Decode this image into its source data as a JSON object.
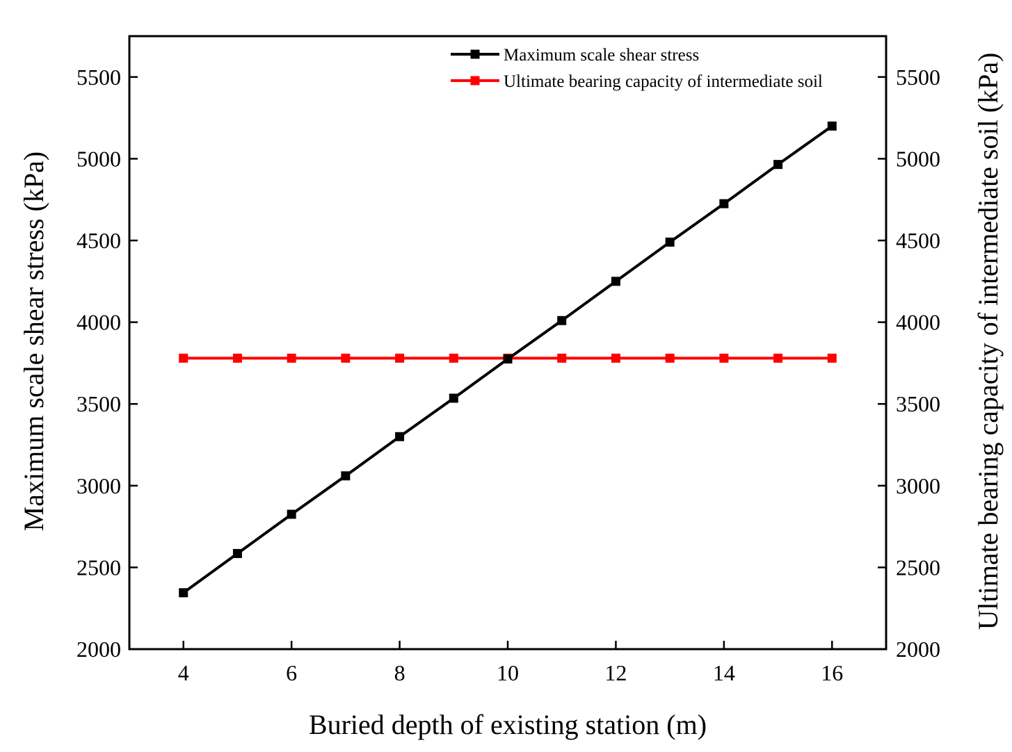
{
  "chart_data": {
    "type": "line",
    "title": "",
    "xlabel": "Buried depth of existing station (m)",
    "ylabel": "Maximum scale shear stress (kPa)",
    "y2label": "Ultimate bearing capacity of intermediate soil (kPa)",
    "xlim": [
      3,
      17
    ],
    "ylim": [
      2000,
      5750
    ],
    "y2lim": [
      2000,
      5750
    ],
    "x_ticks": [
      4,
      6,
      8,
      10,
      12,
      14,
      16
    ],
    "y_ticks": [
      2000,
      2500,
      3000,
      3500,
      4000,
      4500,
      5000,
      5500
    ],
    "y2_ticks": [
      2000,
      2500,
      3000,
      3500,
      4000,
      4500,
      5000,
      5500
    ],
    "legend_position": "top-right",
    "series": [
      {
        "name": "Maximum scale shear stress",
        "color": "#000000",
        "marker": "square",
        "x": [
          4,
          5,
          6,
          7,
          8,
          9,
          10,
          11,
          12,
          13,
          14,
          15,
          16
        ],
        "values": [
          2345,
          2585,
          2825,
          3060,
          3300,
          3535,
          3775,
          4010,
          4250,
          4490,
          4725,
          4965,
          5200
        ]
      },
      {
        "name": "Ultimate bearing capacity of intermediate soil",
        "color": "#ff0000",
        "marker": "square",
        "x": [
          4,
          5,
          6,
          7,
          8,
          9,
          10,
          11,
          12,
          13,
          14,
          15,
          16
        ],
        "values": [
          3780,
          3780,
          3780,
          3780,
          3780,
          3780,
          3780,
          3780,
          3780,
          3780,
          3780,
          3780,
          3780
        ]
      }
    ]
  }
}
